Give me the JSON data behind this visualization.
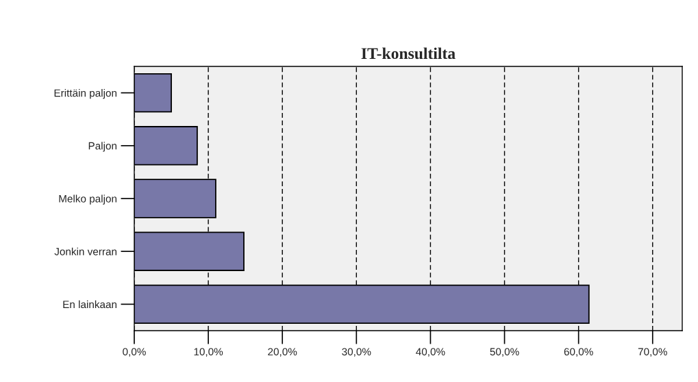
{
  "chart_data": {
    "type": "bar",
    "orientation": "horizontal",
    "title": "IT-konsultilta",
    "categories": [
      "Erittäin paljon",
      "Paljon",
      "Melko paljon",
      "Jonkin verran",
      "En lainkaan"
    ],
    "values": [
      5.0,
      8.5,
      11.0,
      14.8,
      61.4
    ],
    "color": "#7878a8",
    "xlim": [
      0,
      74
    ],
    "xticks": [
      {
        "value": 0,
        "label": "0,0%"
      },
      {
        "value": 10,
        "label": "10,0%"
      },
      {
        "value": 20,
        "label": "20,0%"
      },
      {
        "value": 30,
        "label": "30,0%"
      },
      {
        "value": 40,
        "label": "40,0%"
      },
      {
        "value": 50,
        "label": "50,0%"
      },
      {
        "value": 60,
        "label": "60,0%"
      },
      {
        "value": 70,
        "label": "70,0%"
      }
    ],
    "grid": "x"
  }
}
